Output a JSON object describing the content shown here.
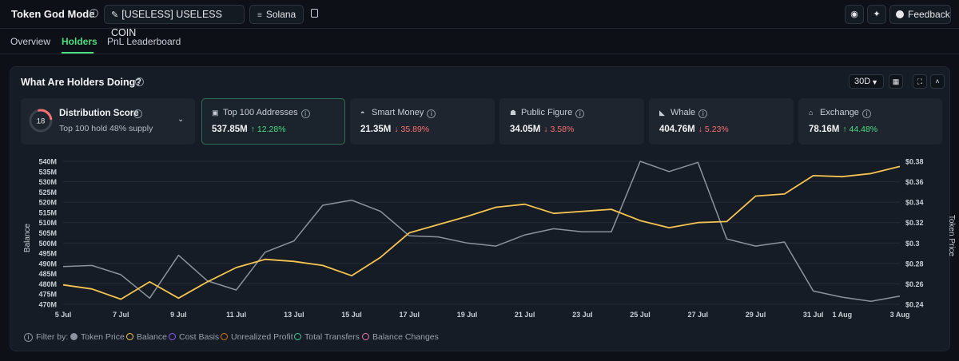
{
  "header": {
    "title": "Token God Mode",
    "token_label": "[USELESS] USELESS COIN",
    "chain_label": "Solana",
    "feedback_label": "Feedback"
  },
  "tabs": [
    {
      "label": "Overview",
      "active": false
    },
    {
      "label": "Holders",
      "active": true
    },
    {
      "label": "PnL Leaderboard",
      "active": false
    }
  ],
  "panel": {
    "title": "What Are Holders Doing?",
    "range": "30D"
  },
  "distribution": {
    "score": "18",
    "title": "Distribution Score",
    "subtitle": "Top 100 hold 48% supply"
  },
  "cards": [
    {
      "label": "Top 100 Addresses",
      "value": "537.85M",
      "change": "↑ 12.28%",
      "dir": "up",
      "icon": "wallet-icon"
    },
    {
      "label": "Smart Money",
      "value": "21.35M",
      "change": "↓ 35.89%",
      "dir": "down",
      "icon": "smart-money-icon"
    },
    {
      "label": "Public Figure",
      "value": "34.05M",
      "change": "↓ 3.58%",
      "dir": "down",
      "icon": "public-figure-icon"
    },
    {
      "label": "Whale",
      "value": "404.76M",
      "change": "↓ 5.23%",
      "dir": "down",
      "icon": "whale-icon"
    },
    {
      "label": "Exchange",
      "value": "78.16M",
      "change": "↑ 44.48%",
      "dir": "up",
      "icon": "bank-icon"
    }
  ],
  "filter": {
    "label": "Filter by:",
    "items": [
      {
        "label": "Token Price",
        "color": "#8b949e",
        "filled": true
      },
      {
        "label": "Balance",
        "color": "#f5c451",
        "filled": false
      },
      {
        "label": "Cost Basis",
        "color": "#8b5cf6",
        "filled": false
      },
      {
        "label": "Unrealized Profit",
        "color": "#d97706",
        "filled": false
      },
      {
        "label": "Total Transfers",
        "color": "#34d399",
        "filled": false
      },
      {
        "label": "Balance Changes",
        "color": "#e879a8",
        "filled": false
      }
    ]
  },
  "chart_data": {
    "type": "line",
    "ylabel": "Balance",
    "y2label": "Token Price",
    "x_ticks": [
      "5 Jul",
      "7 Jul",
      "9 Jul",
      "11 Jul",
      "13 Jul",
      "15 Jul",
      "17 Jul",
      "19 Jul",
      "21 Jul",
      "23 Jul",
      "25 Jul",
      "27 Jul",
      "29 Jul",
      "31 Jul",
      "1 Aug",
      "3 Aug"
    ],
    "y_ticks": [
      "540M",
      "535M",
      "530M",
      "525M",
      "520M",
      "515M",
      "510M",
      "505M",
      "500M",
      "495M",
      "490M",
      "485M",
      "480M",
      "475M",
      "470M"
    ],
    "y2_ticks": [
      "$0.38",
      "$0.36",
      "$0.34",
      "$0.32",
      "$0.3",
      "$0.28",
      "$0.26",
      "$0.24"
    ],
    "ylim": [
      470,
      540
    ],
    "y2lim": [
      0.24,
      0.38
    ],
    "x_days": [
      0,
      1,
      2,
      3,
      4,
      5,
      6,
      7,
      8,
      9,
      10,
      11,
      12,
      13,
      14,
      15,
      16,
      17,
      18,
      19,
      20,
      21,
      22,
      23,
      24,
      25,
      26,
      27,
      28,
      29
    ],
    "series": [
      {
        "name": "Token Price",
        "color": "#8b949e",
        "values": [
          0.277,
          0.278,
          0.269,
          0.246,
          0.288,
          0.263,
          0.254,
          0.291,
          0.302,
          0.337,
          0.342,
          0.331,
          0.307,
          0.306,
          0.3,
          0.297,
          0.308,
          0.314,
          0.311,
          0.311,
          0.38,
          0.37,
          0.379,
          0.304,
          0.297,
          0.301,
          0.253,
          0.247,
          0.243,
          0.248
        ]
      },
      {
        "name": "Balance",
        "color": "#f5c451",
        "values": [
          479.5,
          477.5,
          472.5,
          481,
          473,
          481,
          488,
          492,
          491,
          489,
          484,
          493,
          505,
          509,
          513,
          517.5,
          519,
          514.5,
          515.5,
          516.5,
          511,
          507.5,
          510,
          510.5,
          523,
          524,
          533,
          532.5,
          534,
          537.5
        ]
      }
    ]
  }
}
